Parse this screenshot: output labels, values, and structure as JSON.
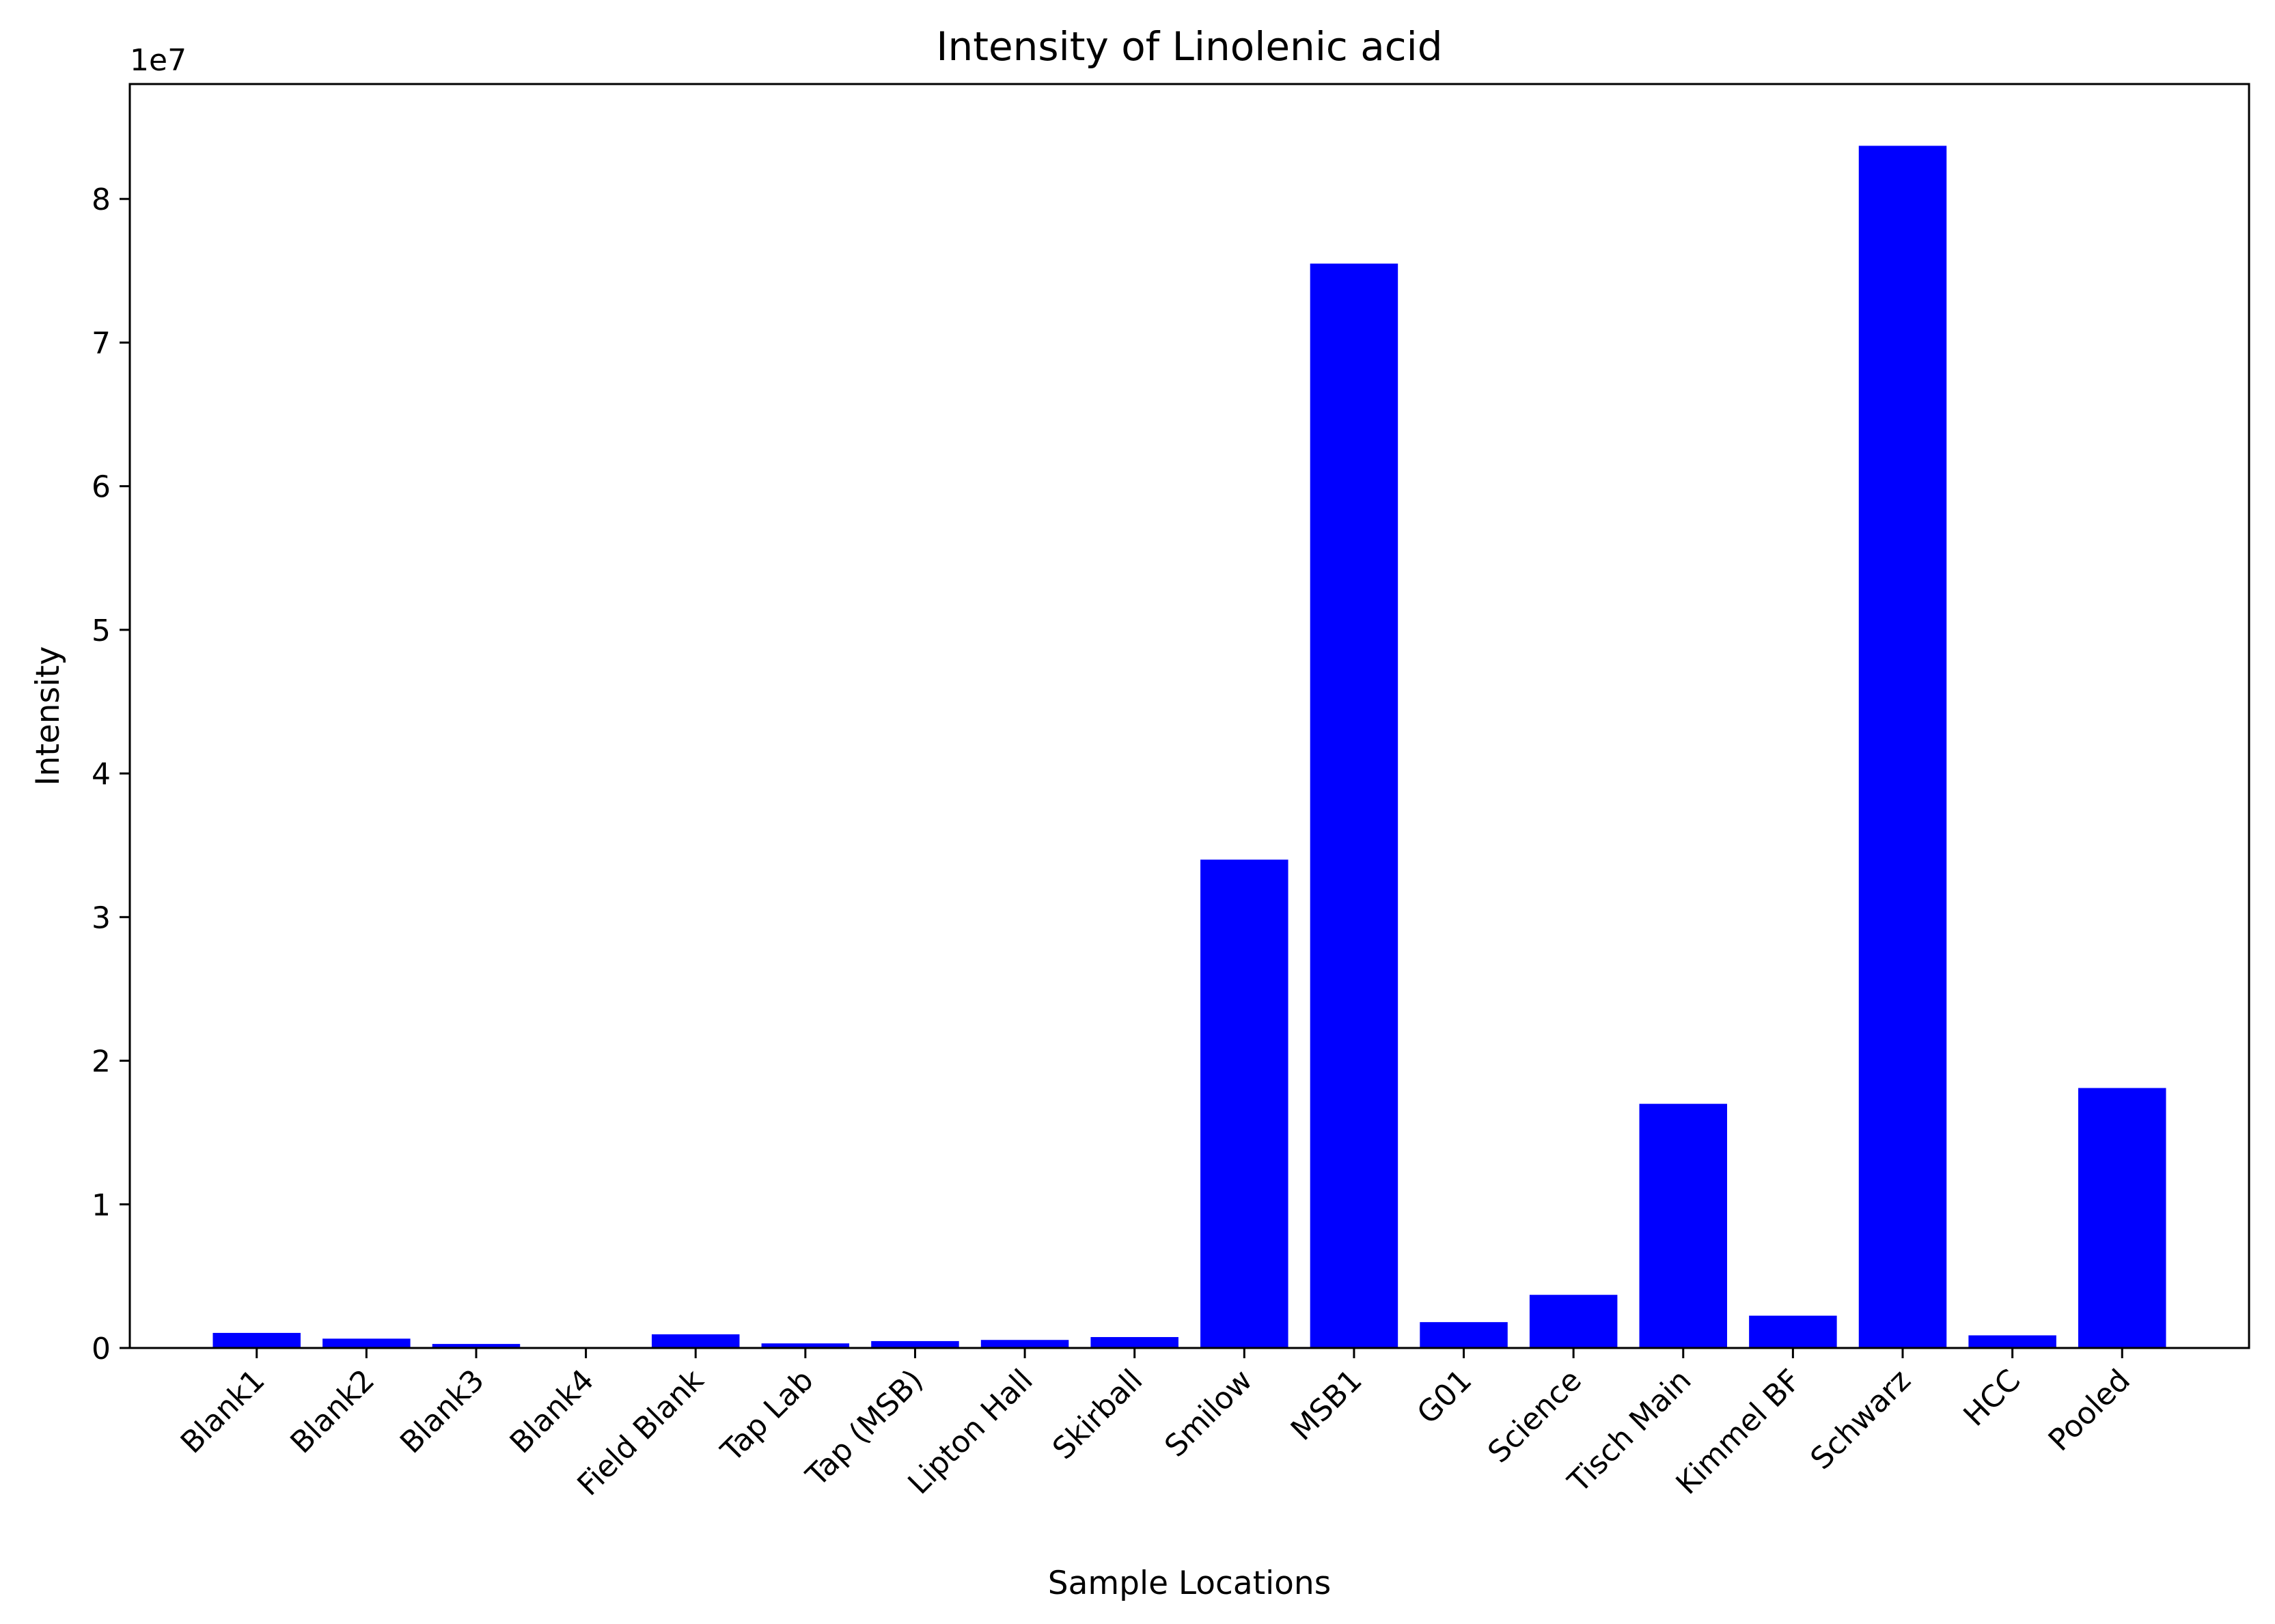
{
  "chart_data": {
    "type": "bar",
    "title": "Intensity of Linolenic acid",
    "xlabel": "Sample Locations",
    "ylabel": "Intensity",
    "offset_label": "1e7",
    "categories": [
      "Blank1",
      "Blank2",
      "Blank3",
      "Blank4",
      "Field Blank",
      "Tap Lab",
      "Tap (MSB)",
      "Lipton Hall",
      "Skirball",
      "Smilow",
      "MSB1",
      "G01",
      "Science",
      "Tisch Main",
      "Kimmel BF",
      "Schwarz",
      "HCC",
      "Pooled"
    ],
    "values": [
      1050000,
      650000,
      280000,
      0,
      950000,
      320000,
      480000,
      560000,
      760000,
      34000000,
      75500000,
      1800000,
      3700000,
      17000000,
      2250000,
      83700000,
      880000,
      18100000
    ],
    "ylim": [
      0,
      88000000
    ],
    "yticks": [
      0,
      10000000,
      20000000,
      30000000,
      40000000,
      50000000,
      60000000,
      70000000,
      80000000
    ],
    "ytick_labels": [
      "0",
      "1",
      "2",
      "3",
      "4",
      "5",
      "6",
      "7",
      "8"
    ],
    "bar_color": "#0000ff",
    "grid": false,
    "legend": "none"
  }
}
